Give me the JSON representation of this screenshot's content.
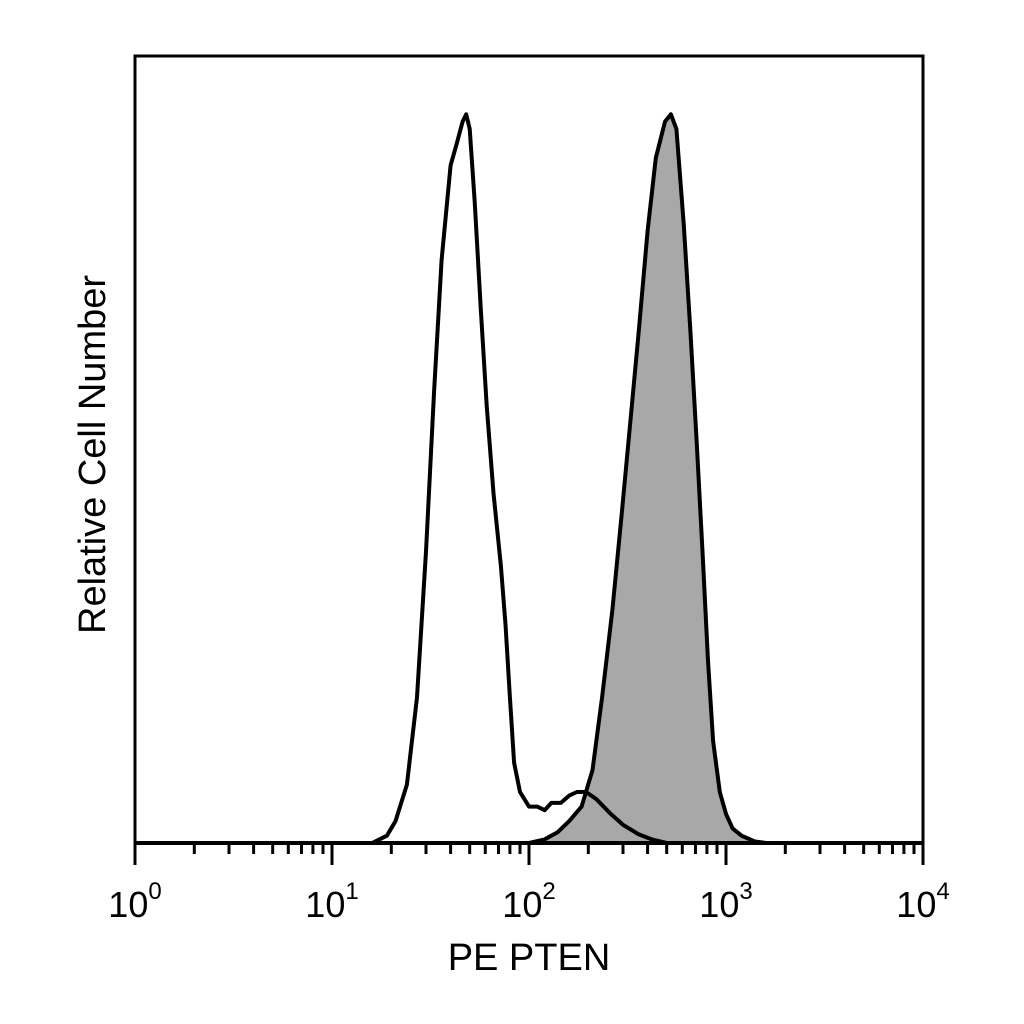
{
  "chart_data": {
    "type": "area",
    "title": "",
    "xlabel": "PE PTEN",
    "ylabel": "Relative Cell Number",
    "xscale": "log",
    "xlim": [
      1,
      10000
    ],
    "ylim": [
      0,
      1.08
    ],
    "grid": false,
    "legend": "none",
    "x_ticks": [
      {
        "value": 1,
        "base": "10",
        "exp": "0"
      },
      {
        "value": 10,
        "base": "10",
        "exp": "1"
      },
      {
        "value": 100,
        "base": "10",
        "exp": "2"
      },
      {
        "value": 1000,
        "base": "10",
        "exp": "3"
      },
      {
        "value": 10000,
        "base": "10",
        "exp": "4"
      }
    ],
    "series": [
      {
        "style": "outline",
        "color": "#000000",
        "points": [
          [
            1,
            0
          ],
          [
            16,
            0
          ],
          [
            19,
            0.01
          ],
          [
            21,
            0.03
          ],
          [
            24,
            0.08
          ],
          [
            27,
            0.2
          ],
          [
            30,
            0.4
          ],
          [
            33,
            0.62
          ],
          [
            36,
            0.8
          ],
          [
            40,
            0.93
          ],
          [
            43,
            0.96
          ],
          [
            46,
            0.99
          ],
          [
            48,
            1.0
          ],
          [
            50,
            0.98
          ],
          [
            53,
            0.88
          ],
          [
            57,
            0.73
          ],
          [
            61,
            0.6
          ],
          [
            66,
            0.48
          ],
          [
            72,
            0.38
          ],
          [
            76,
            0.3
          ],
          [
            80,
            0.2
          ],
          [
            84,
            0.11
          ],
          [
            90,
            0.07
          ],
          [
            100,
            0.05
          ],
          [
            110,
            0.05
          ],
          [
            120,
            0.045
          ],
          [
            130,
            0.055
          ],
          [
            145,
            0.055
          ],
          [
            160,
            0.065
          ],
          [
            175,
            0.07
          ],
          [
            195,
            0.07
          ],
          [
            220,
            0.06
          ],
          [
            260,
            0.04
          ],
          [
            300,
            0.025
          ],
          [
            360,
            0.012
          ],
          [
            420,
            0.005
          ],
          [
            500,
            0
          ],
          [
            10000,
            0
          ]
        ]
      },
      {
        "style": "filled",
        "color": "#a8a8a8",
        "points": [
          [
            1,
            0
          ],
          [
            100,
            0
          ],
          [
            120,
            0.005
          ],
          [
            140,
            0.015
          ],
          [
            160,
            0.03
          ],
          [
            185,
            0.05
          ],
          [
            210,
            0.1
          ],
          [
            235,
            0.2
          ],
          [
            265,
            0.32
          ],
          [
            295,
            0.45
          ],
          [
            325,
            0.57
          ],
          [
            360,
            0.7
          ],
          [
            400,
            0.84
          ],
          [
            440,
            0.94
          ],
          [
            490,
            0.99
          ],
          [
            525,
            1.0
          ],
          [
            560,
            0.98
          ],
          [
            610,
            0.85
          ],
          [
            660,
            0.7
          ],
          [
            710,
            0.55
          ],
          [
            760,
            0.4
          ],
          [
            810,
            0.25
          ],
          [
            860,
            0.14
          ],
          [
            930,
            0.07
          ],
          [
            1000,
            0.04
          ],
          [
            1080,
            0.02
          ],
          [
            1200,
            0.01
          ],
          [
            1400,
            0.002
          ],
          [
            1600,
            0
          ],
          [
            10000,
            0
          ]
        ]
      }
    ]
  }
}
